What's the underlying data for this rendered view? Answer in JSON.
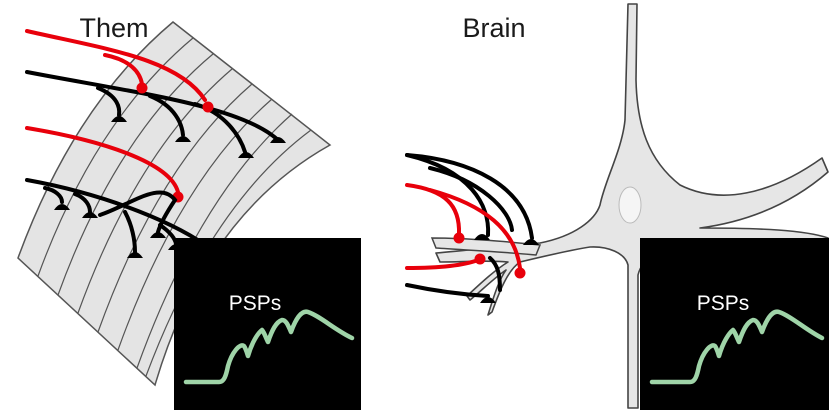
{
  "panels": {
    "left": {
      "title": "Them",
      "inset_label": "PSPs"
    },
    "right": {
      "title": "Brain",
      "inset_label": "PSPs"
    }
  },
  "colors": {
    "excitatory_axon": "#e8000b",
    "axon": "#000000",
    "tissue_fill": "#e4e4e4",
    "outline": "#555555",
    "inset_bg": "#000000",
    "psp_trace": "#9fd4a8"
  }
}
